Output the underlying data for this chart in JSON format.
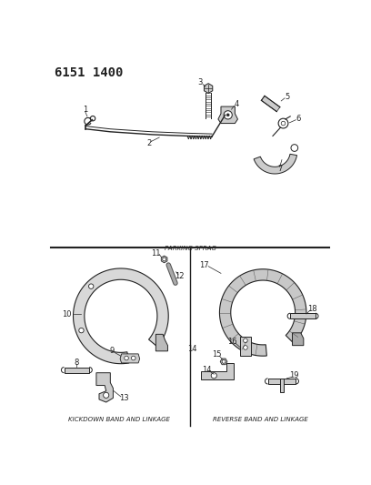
{
  "title_code": "6151 1400",
  "bg_color": "#ffffff",
  "lc": "#222222",
  "parking_sprag_label": "PARKING SPRAG",
  "kickdown_label": "KICKDOWN BAND AND LINKAGE",
  "reverse_label": "REVERSE BAND AND LINKAGE",
  "title_fontsize": 10,
  "label_fontsize": 5,
  "num_fontsize": 6
}
